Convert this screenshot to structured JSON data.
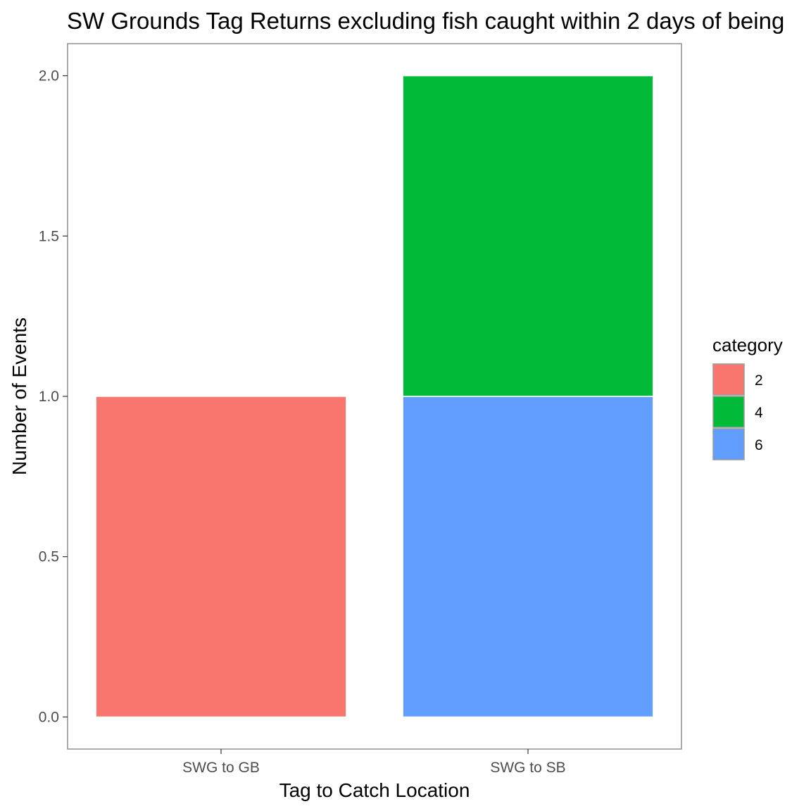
{
  "chart_data": {
    "type": "bar",
    "stacked": true,
    "title": "SW Grounds Tag Returns excluding fish caught within 2 days of being",
    "xlabel": "Tag to Catch Location",
    "ylabel": "Number of Events",
    "categories": [
      "SWG to GB",
      "SWG to SB"
    ],
    "series": [
      {
        "name": "2",
        "color": "#F8766D",
        "values": [
          1,
          0
        ]
      },
      {
        "name": "4",
        "color": "#00BA38",
        "values": [
          0,
          1
        ]
      },
      {
        "name": "6",
        "color": "#619CFF",
        "values": [
          0,
          1
        ]
      }
    ],
    "stack_order": [
      "2",
      "4",
      "6"
    ],
    "ylim": [
      -0.1,
      2.1
    ],
    "yticks": [
      "0.0",
      "0.5",
      "1.0",
      "1.5",
      "2.0"
    ],
    "ytick_values": [
      0,
      0.5,
      1.0,
      1.5,
      2.0
    ],
    "grid": false,
    "legend": {
      "title": "category",
      "placement": "right",
      "entries": [
        "2",
        "4",
        "6"
      ]
    }
  }
}
